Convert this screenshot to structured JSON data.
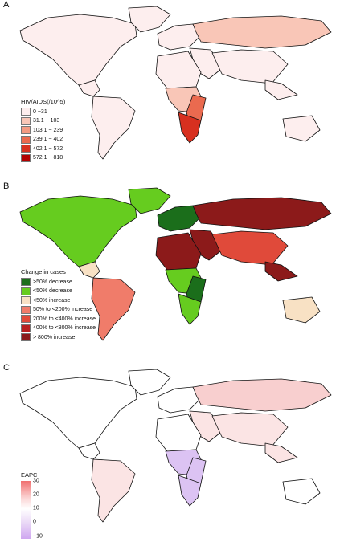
{
  "panels": {
    "a": {
      "letter": "A",
      "legend": {
        "title": "HIV/AIDS(/10^5)",
        "items": [
          {
            "label": "0 ~31",
            "color": "#fdeeee"
          },
          {
            "label": "31.1 ~ 103",
            "color": "#f9c6b7"
          },
          {
            "label": "103.1 ~ 239",
            "color": "#f39a82"
          },
          {
            "label": "239.1 ~ 402",
            "color": "#ea6a4f"
          },
          {
            "label": "402.1 ~ 572",
            "color": "#d7301f"
          },
          {
            "label": "572.1 ~ 818",
            "color": "#b30000"
          }
        ]
      }
    },
    "b": {
      "letter": "B",
      "legend": {
        "title": "Change in cases",
        "items": [
          {
            "label": ">50% decrease",
            "color": "#1b6e1b"
          },
          {
            "label": "<50% decrease",
            "color": "#66cc1f"
          },
          {
            "label": "<50% increase",
            "color": "#f8e1c4"
          },
          {
            "label": "50% to <200% increase",
            "color": "#f07c6a"
          },
          {
            "label": "200% to <400% increase",
            "color": "#e04a3a"
          },
          {
            "label": "400% to <800% increase",
            "color": "#b8201f"
          },
          {
            "label": "> 800% increase",
            "color": "#8c1a1a"
          }
        ]
      }
    },
    "c": {
      "letter": "C",
      "legend": {
        "title": "EAPC",
        "ticks": [
          "30",
          "20",
          "10",
          "0",
          "−10"
        ],
        "gradient": [
          "#f07070",
          "#ffffff",
          "#cfa7f0"
        ]
      }
    }
  },
  "colors": {
    "outline": "#111111",
    "a_low": "#fdeeee",
    "a_mid": "#f9c6b7",
    "a_high": "#ea6a4f",
    "a_top": "#d7301f",
    "b_darkred": "#8c1a1a",
    "b_red": "#e04a3a",
    "b_salmon": "#f07c6a",
    "b_cream": "#f8e1c4",
    "b_lightgreen": "#66cc1f",
    "b_darkgreen": "#1b6e1b",
    "c_white": "#ffffff",
    "c_pink": "#f8cfcf",
    "c_lightpink": "#fbe4e4",
    "c_purple": "#dcc3f3"
  }
}
